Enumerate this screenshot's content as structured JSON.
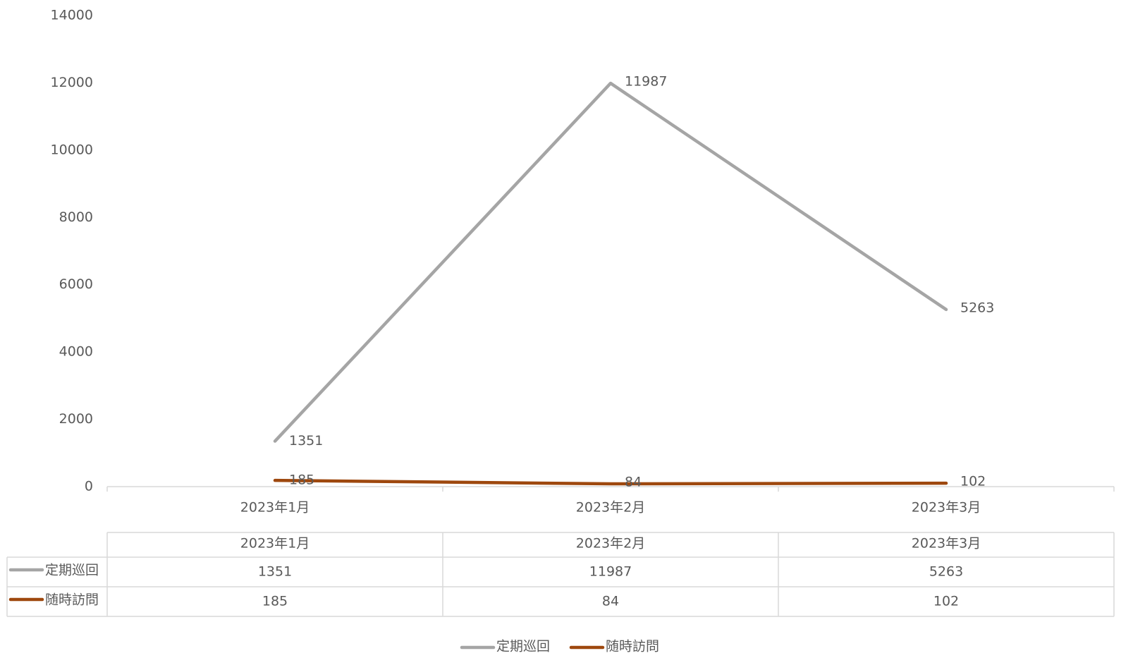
{
  "chart_data": {
    "type": "line",
    "categories": [
      "2023年1月",
      "2023年2月",
      "2023年3月"
    ],
    "series": [
      {
        "name": "定期巡回",
        "color": "#a5a5a5",
        "values": [
          1351,
          11987,
          5263
        ]
      },
      {
        "name": "随時訪問",
        "color": "#9e480e",
        "values": [
          185,
          84,
          102
        ]
      }
    ],
    "ylim": [
      0,
      14000
    ],
    "yticks": [
      0,
      2000,
      4000,
      6000,
      8000,
      10000,
      12000,
      14000
    ],
    "legend": "bottom"
  }
}
